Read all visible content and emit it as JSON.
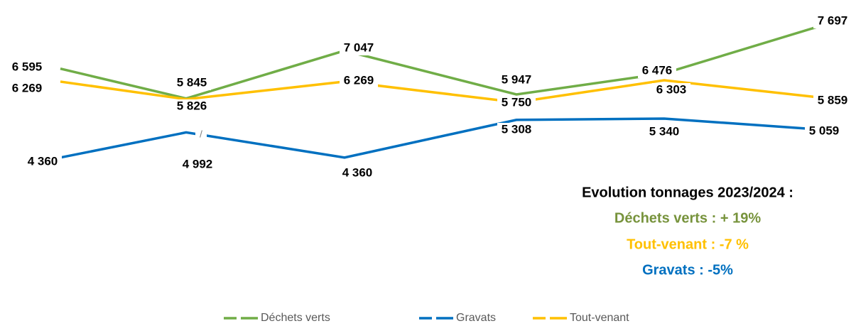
{
  "chart_data": {
    "type": "line",
    "categories": [
      null,
      null,
      null,
      null,
      null,
      null
    ],
    "ylim": [
      4000,
      8000
    ],
    "series": [
      {
        "name": "Déchets verts",
        "color": "#70ad47",
        "values": [
          6595,
          5845,
          7047,
          5947,
          6476,
          7697
        ],
        "value_labels": [
          "6 595",
          "5 845",
          "7 047",
          "5 947",
          "6 476",
          "7 697"
        ]
      },
      {
        "name": "Gravats",
        "color": "#0070c0",
        "values": [
          4360,
          4992,
          4360,
          5308,
          5340,
          5059
        ],
        "value_labels": [
          "4 360",
          "4 992",
          "4 360",
          "5 308",
          "5 340",
          "5 059"
        ]
      },
      {
        "name": "Tout-venant",
        "color": "#ffc000",
        "values": [
          6269,
          5826,
          6269,
          5750,
          6303,
          5859
        ],
        "value_labels": [
          "6 269",
          "5 826",
          "6 269",
          "5 750",
          "6 303",
          "5 859"
        ]
      }
    ],
    "annotations": [
      {
        "text": "/",
        "color": "#7f7f7f"
      },
      {
        "text": "Evolution tonnages 2023/2024 :",
        "color": "#000000"
      },
      {
        "text": "Déchets verts : + 19%",
        "color": "#77933c"
      },
      {
        "text": "Tout-venant : -7 %",
        "color": "#ffc000"
      },
      {
        "text": "Gravats : -5%",
        "color": "#0070c0"
      }
    ],
    "legend": "bottom"
  }
}
